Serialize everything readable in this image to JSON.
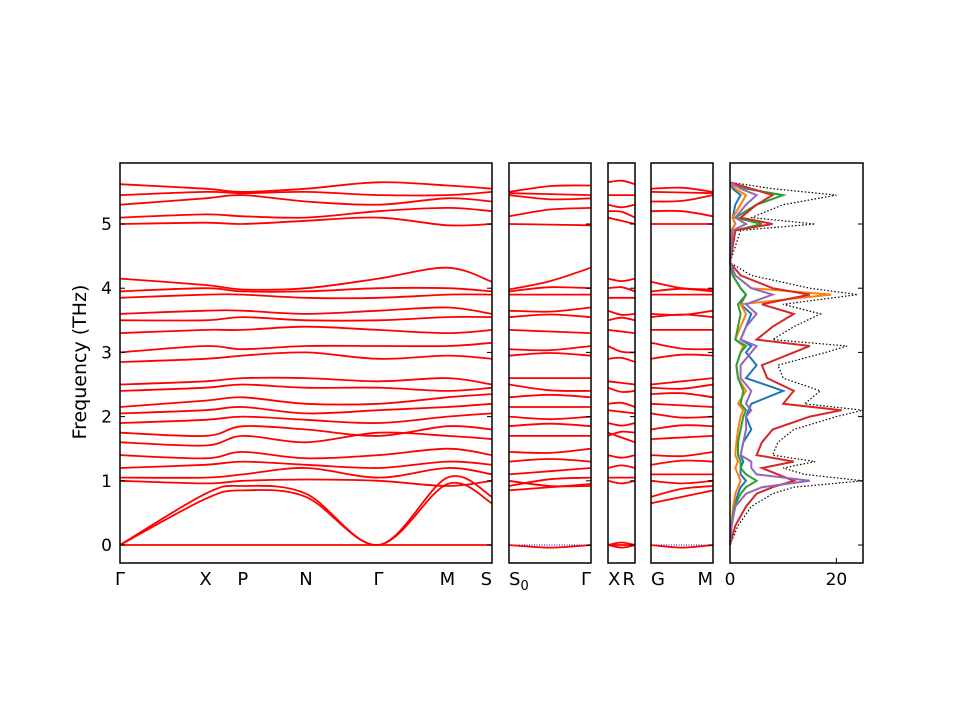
{
  "chart_data": {
    "type": "line",
    "ylabel": "Frequency (THz)",
    "ylim": [
      -0.28,
      5.95
    ],
    "yticks": [
      0,
      1,
      2,
      3,
      4,
      5
    ],
    "colors": {
      "bands": "#ff0000",
      "zero_line": "#0000cc",
      "dos_total": "#000000",
      "pdos": [
        "#1f77b4",
        "#ff7f0e",
        "#2ca02c",
        "#d62728",
        "#9467bd"
      ]
    },
    "segments": [
      {
        "labels": [
          "Γ",
          "X",
          "P",
          "N",
          "Γ",
          "M",
          "S"
        ],
        "kpos": [
          0,
          0.23,
          0.33,
          0.5,
          0.695,
          0.88,
          1.0
        ]
      },
      {
        "labels": [
          "S0",
          "Γ"
        ],
        "kpos": [
          0,
          1
        ]
      },
      {
        "labels": [
          "X",
          "R"
        ],
        "kpos": [
          0,
          1
        ]
      },
      {
        "labels": [
          "G",
          "M"
        ],
        "kpos": [
          0,
          1
        ]
      }
    ],
    "bands": [
      [
        0.0,
        0.0,
        0.0,
        0.0,
        0.0,
        0.0,
        0.0
      ],
      [
        0.0,
        0.72,
        0.85,
        0.75,
        0.0,
        0.95,
        0.65
      ],
      [
        0.0,
        0.8,
        0.92,
        0.8,
        0.0,
        1.05,
        0.75
      ],
      [
        1.0,
        0.96,
        1.0,
        1.02,
        1.0,
        0.92,
        1.0
      ],
      [
        1.05,
        1.05,
        1.1,
        1.2,
        1.05,
        1.2,
        1.1
      ],
      [
        1.2,
        1.25,
        1.3,
        1.25,
        1.2,
        1.3,
        1.25
      ],
      [
        1.4,
        1.35,
        1.45,
        1.35,
        1.4,
        1.5,
        1.4
      ],
      [
        1.6,
        1.55,
        1.7,
        1.6,
        1.75,
        1.7,
        1.65
      ],
      [
        1.75,
        1.7,
        1.85,
        1.8,
        1.7,
        1.85,
        1.8
      ],
      [
        1.9,
        1.95,
        2.0,
        1.95,
        1.9,
        2.0,
        2.05
      ],
      [
        2.05,
        2.1,
        2.15,
        2.05,
        2.1,
        2.15,
        2.2
      ],
      [
        2.15,
        2.25,
        2.3,
        2.2,
        2.2,
        2.3,
        2.35
      ],
      [
        2.4,
        2.45,
        2.5,
        2.45,
        2.45,
        2.4,
        2.45
      ],
      [
        2.5,
        2.55,
        2.6,
        2.6,
        2.55,
        2.6,
        2.5
      ],
      [
        2.85,
        2.9,
        2.95,
        3.0,
        2.9,
        2.95,
        2.9
      ],
      [
        3.0,
        3.1,
        3.05,
        3.1,
        3.1,
        3.1,
        3.15
      ],
      [
        3.3,
        3.35,
        3.35,
        3.4,
        3.35,
        3.3,
        3.35
      ],
      [
        3.5,
        3.5,
        3.55,
        3.5,
        3.5,
        3.55,
        3.55
      ],
      [
        3.6,
        3.65,
        3.65,
        3.6,
        3.65,
        3.7,
        3.6
      ],
      [
        3.85,
        3.9,
        3.9,
        3.85,
        3.85,
        3.9,
        3.9
      ],
      [
        3.95,
        4.0,
        3.95,
        3.95,
        4.0,
        4.0,
        3.95
      ],
      [
        4.15,
        4.05,
        3.98,
        4.0,
        4.15,
        4.32,
        4.1
      ],
      [
        5.0,
        5.02,
        5.0,
        5.05,
        5.1,
        4.98,
        5.0
      ],
      [
        5.1,
        5.15,
        5.12,
        5.1,
        5.2,
        5.25,
        5.2
      ],
      [
        5.3,
        5.4,
        5.45,
        5.35,
        5.3,
        5.4,
        5.35
      ],
      [
        5.45,
        5.5,
        5.48,
        5.5,
        5.45,
        5.45,
        5.5
      ],
      [
        5.62,
        5.55,
        5.5,
        5.55,
        5.65,
        5.6,
        5.55
      ]
    ],
    "dos": {
      "xlim": [
        0,
        25
      ],
      "xticks": [
        0,
        20
      ],
      "freq": [
        0.0,
        0.3,
        0.6,
        0.8,
        0.9,
        1.0,
        1.1,
        1.2,
        1.3,
        1.4,
        1.6,
        1.8,
        2.0,
        2.1,
        2.2,
        2.4,
        2.6,
        2.8,
        3.0,
        3.1,
        3.2,
        3.4,
        3.6,
        3.75,
        3.9,
        4.0,
        4.2,
        4.4,
        4.9,
        5.0,
        5.1,
        5.3,
        5.45,
        5.55,
        5.65
      ],
      "total": [
        0,
        1.5,
        4,
        8,
        12,
        25,
        14,
        10,
        16,
        8,
        9,
        12,
        20,
        25,
        14,
        17,
        10,
        9,
        18,
        22,
        8,
        12,
        17,
        10,
        24,
        15,
        4,
        0,
        2,
        16,
        4,
        10,
        20,
        8,
        0
      ],
      "projected": [
        {
          "values": [
            0,
            0.3,
            0.8,
            1.5,
            2,
            3,
            2,
            2,
            2.5,
            2,
            2.5,
            4,
            3,
            3.5,
            4,
            10,
            3,
            5,
            3,
            4,
            2,
            3,
            4,
            2,
            3,
            2,
            0.5,
            0,
            0.2,
            1,
            0.5,
            1,
            2,
            0.5,
            0
          ]
        },
        {
          "values": [
            0,
            0.2,
            0.6,
            1,
            1.5,
            2,
            1.5,
            1,
            1.5,
            1,
            1.2,
            1.5,
            2,
            2.5,
            1.5,
            3,
            1.5,
            1.2,
            2,
            2.5,
            1,
            2,
            3,
            2,
            19,
            4,
            1,
            0,
            0.3,
            1,
            0.5,
            2,
            3,
            1,
            0
          ]
        },
        {
          "values": [
            0,
            0.3,
            0.8,
            2,
            3,
            5,
            3,
            2,
            2,
            1.5,
            1.5,
            2,
            2.5,
            3,
            2,
            2.5,
            1.5,
            1.2,
            2,
            3,
            1,
            1.5,
            2,
            1.5,
            3,
            2,
            0.5,
            0,
            1,
            6,
            1,
            5,
            10,
            3,
            0
          ]
        },
        {
          "values": [
            0,
            1.0,
            3,
            5,
            8,
            12,
            9,
            6,
            12,
            5,
            6,
            8,
            15,
            21,
            10,
            12,
            7,
            6,
            12,
            15,
            5,
            8,
            12,
            6,
            15,
            8,
            2,
            0,
            1,
            8,
            2,
            5,
            8,
            4,
            0
          ]
        },
        {
          "values": [
            0,
            0.3,
            1,
            3,
            6,
            15,
            5,
            4,
            4,
            2,
            2.5,
            3,
            3,
            4,
            3,
            4,
            2,
            2,
            4,
            5,
            2,
            3,
            5,
            3,
            8,
            4,
            1,
            0,
            0.5,
            3,
            1,
            3,
            5,
            2,
            0
          ]
        }
      ]
    }
  }
}
